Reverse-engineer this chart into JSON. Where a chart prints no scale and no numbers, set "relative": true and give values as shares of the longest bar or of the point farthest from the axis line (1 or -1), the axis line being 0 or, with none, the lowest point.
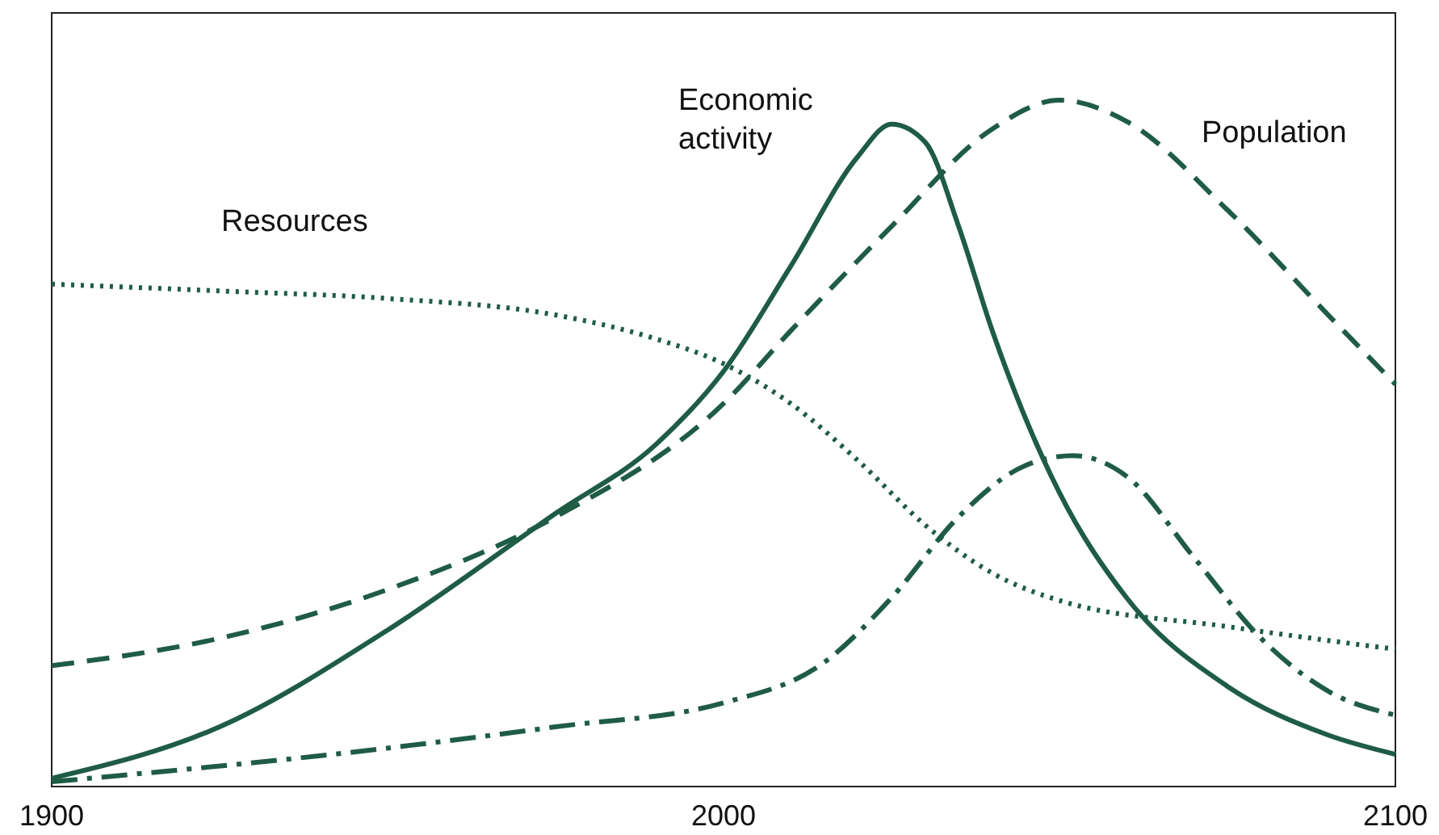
{
  "chart_data": {
    "type": "line",
    "relative": true,
    "xlim": [
      1900,
      2100
    ],
    "xticks": [
      1900,
      2000,
      2100
    ],
    "tick_labels": "x",
    "grid": false,
    "series": [
      {
        "name": "Resources",
        "color": "#1f5c45",
        "line_style": "dotted",
        "x": [
          1900,
          1925,
          1950,
          1975,
          1990,
          2000,
          2010,
          2020,
          2030,
          2040,
          2050,
          2075,
          2100
        ],
        "values": [
          0.732,
          0.722,
          0.711,
          0.687,
          0.652,
          0.616,
          0.558,
          0.475,
          0.381,
          0.311,
          0.271,
          0.233,
          0.2
        ]
      },
      {
        "name": "Economic activity",
        "color": "#1f5c45",
        "line_style": "solid",
        "x": [
          1900,
          1925,
          1950,
          1975,
          1990,
          2000,
          2010,
          2020,
          2025,
          2030,
          2035,
          2040,
          2050,
          2060,
          2075,
          2090,
          2100
        ],
        "values": [
          0.012,
          0.087,
          0.228,
          0.398,
          0.499,
          0.605,
          0.758,
          0.918,
          0.965,
          0.939,
          0.816,
          0.664,
          0.428,
          0.275,
          0.146,
          0.075,
          0.047
        ]
      },
      {
        "name": "Population",
        "color": "#1f5c45",
        "line_style": "dashed",
        "x": [
          1900,
          1925,
          1950,
          1975,
          2000,
          2010,
          2025,
          2040,
          2050,
          2060,
          2075,
          2090,
          2100
        ],
        "values": [
          0.176,
          0.216,
          0.287,
          0.393,
          0.558,
          0.664,
          0.816,
          0.958,
          1,
          0.969,
          0.84,
          0.687,
          0.586
        ]
      },
      {
        "color": "#1f5c45",
        "line_style": "dashdot",
        "x": [
          1900,
          1950,
          1975,
          2000,
          2015,
          2025,
          2035,
          2045,
          2052,
          2060,
          2070,
          2080,
          2090,
          2100
        ],
        "values": [
          0.007,
          0.056,
          0.087,
          0.122,
          0.181,
          0.275,
          0.393,
          0.468,
          0.482,
          0.452,
          0.334,
          0.216,
          0.139,
          0.104
        ]
      }
    ]
  }
}
